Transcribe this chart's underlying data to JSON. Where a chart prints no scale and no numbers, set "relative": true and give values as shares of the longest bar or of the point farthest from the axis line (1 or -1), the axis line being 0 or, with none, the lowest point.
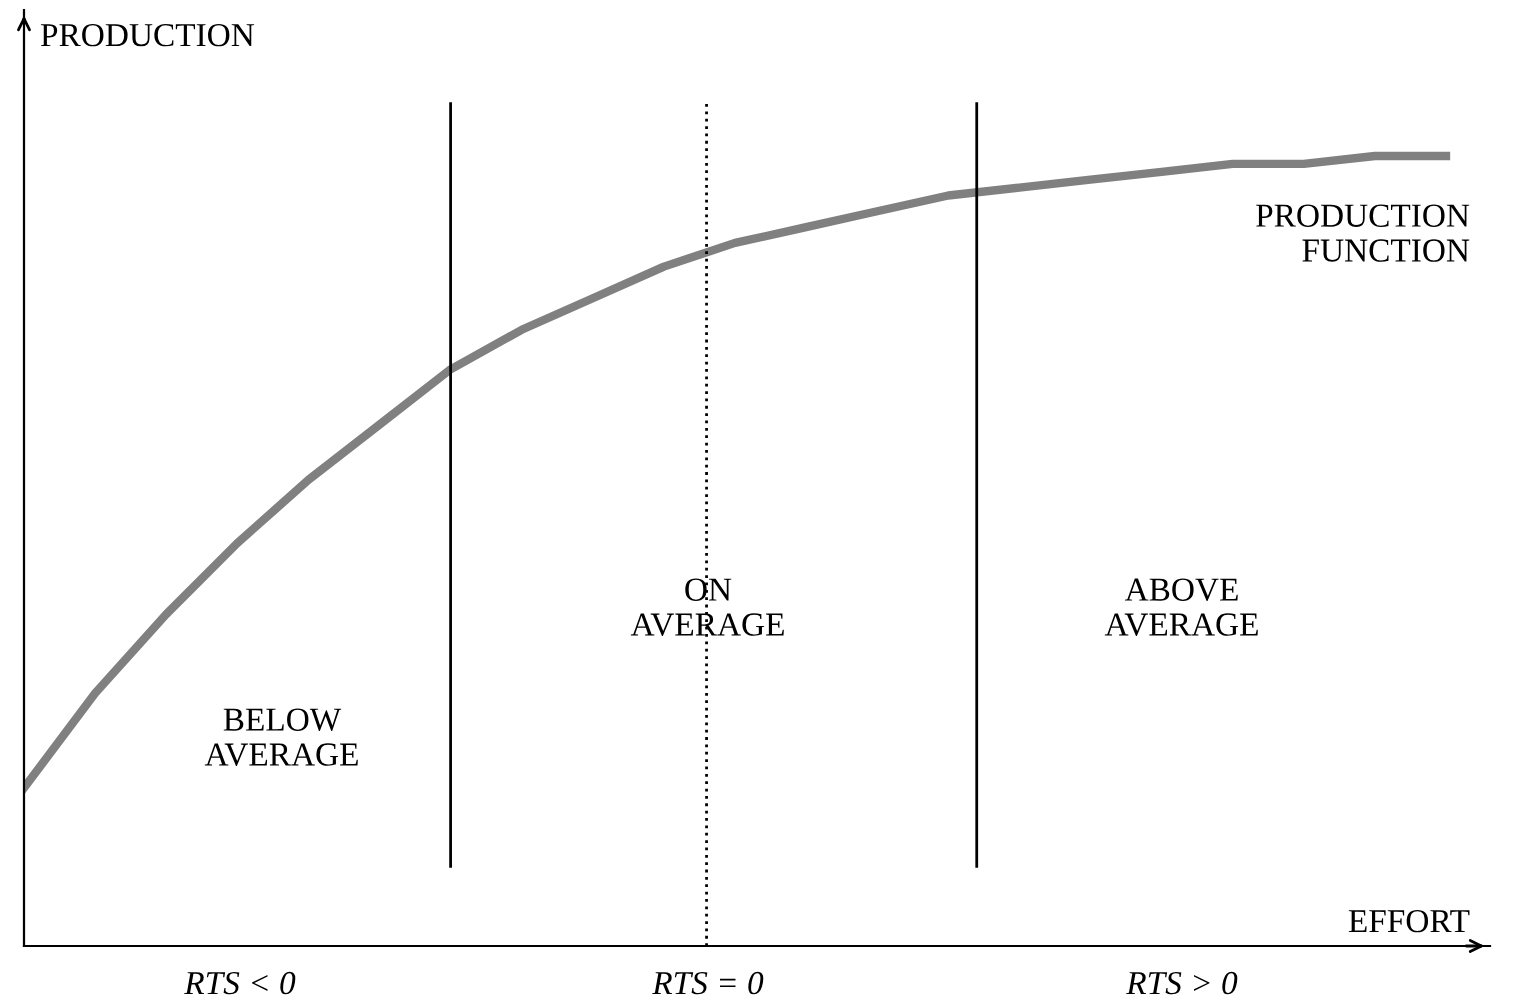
{
  "chart_data": {
    "type": "line",
    "relative": true,
    "ylabel": "PRODUCTION",
    "xlabel": "EFFORT",
    "categories": [
      null,
      null,
      null,
      null,
      null,
      null,
      null,
      null,
      null,
      null,
      null,
      null,
      null,
      null,
      null,
      null,
      null,
      null,
      null,
      null,
      null
    ],
    "series": [
      {
        "color": "#808080",
        "values": [
          0.2,
          0.32,
          0.42,
          0.51,
          0.59,
          0.66,
          0.73,
          0.78,
          0.82,
          0.86,
          0.89,
          0.91,
          0.93,
          0.95,
          0.96,
          0.97,
          0.98,
          0.99,
          0.99,
          1.0,
          1.0
        ]
      }
    ],
    "marker": "none",
    "line_style": "solid",
    "grid": false,
    "annotations": [
      "PRODUCTION\nFUNCTION",
      "BELOW\nAVERAGE",
      "ON\nAVERAGE",
      "ABOVE\nAVERAGE",
      "RTS < 0",
      "RTS = 0",
      "RTS > 0"
    ]
  }
}
